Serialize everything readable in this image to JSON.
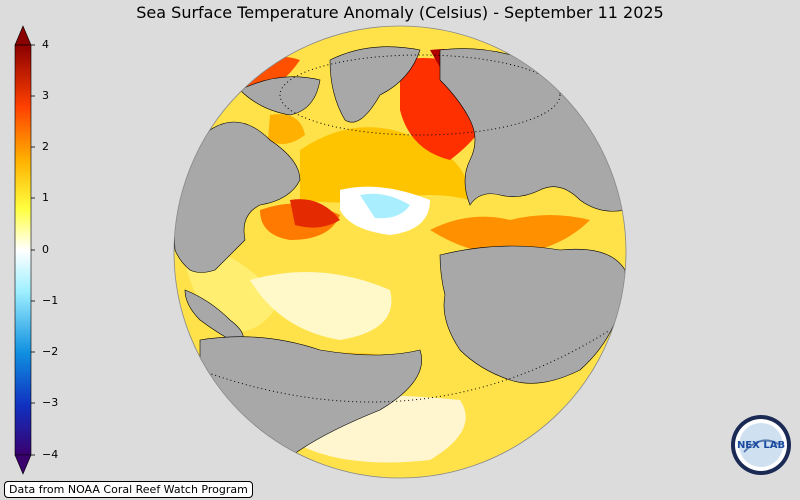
{
  "title": "Sea Surface Temperature Anomaly (Celsius) - September 11 2025",
  "colorbar": {
    "ticks": [
      "4",
      "3",
      "2",
      "1",
      "0",
      "−1",
      "−2",
      "−3",
      "−4"
    ],
    "colors": [
      "#3a006e",
      "#1040d0",
      "#20a0f0",
      "#a0f0ff",
      "#ffffff",
      "#ffff60",
      "#ffc000",
      "#ff7000",
      "#e01000",
      "#8b0000"
    ]
  },
  "map": {
    "ocean_color": "#ffe060",
    "land_color": "#a8a8a8",
    "background_color": "#dcdcdc"
  },
  "credit": "Data from NOAA Coral Reef Watch Program",
  "logo": {
    "text": "NEX LAB"
  }
}
